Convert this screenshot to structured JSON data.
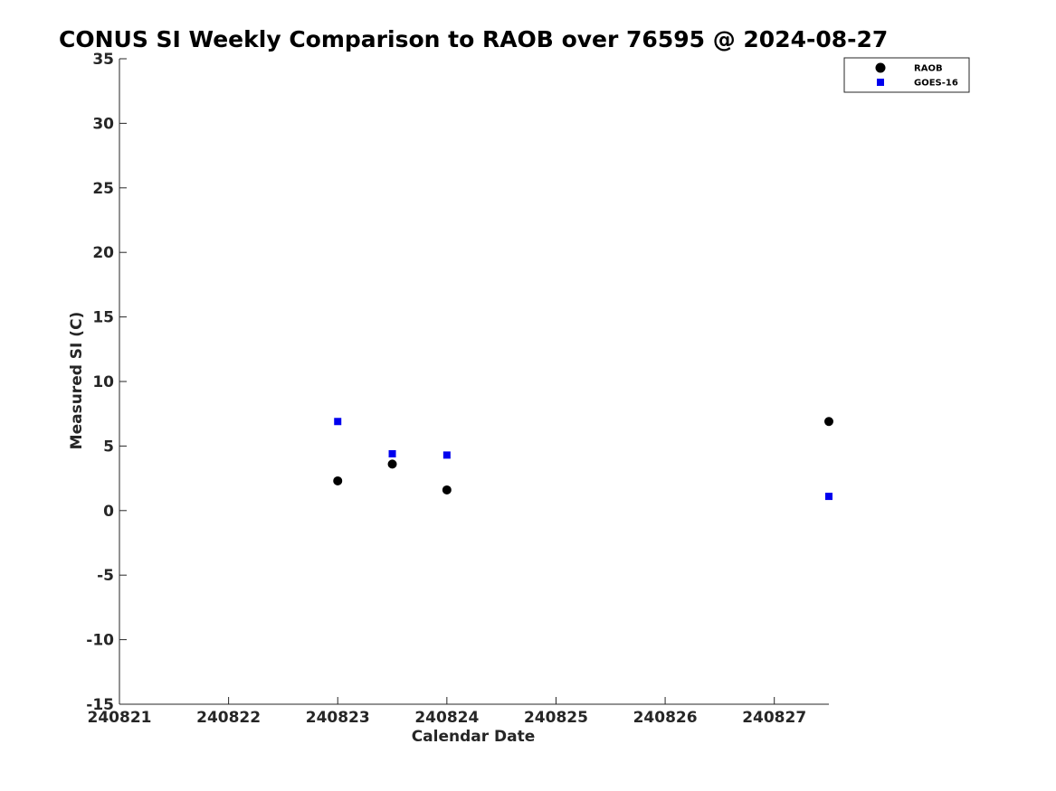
{
  "chart_data": {
    "type": "scatter",
    "title": "CONUS SI Weekly Comparison to RAOB over 76595 @ 2024-08-27",
    "xlabel": "Calendar Date",
    "ylabel": "Measured SI (C)",
    "xlim": [
      240821,
      240827.5
    ],
    "ylim": [
      -15,
      35
    ],
    "xticks": [
      240821,
      240822,
      240823,
      240824,
      240825,
      240826,
      240827
    ],
    "xtick_labels": [
      "240821",
      "240822",
      "240823",
      "240824",
      "240825",
      "240826",
      "240827"
    ],
    "yticks": [
      -15,
      -10,
      -5,
      0,
      5,
      10,
      15,
      20,
      25,
      30,
      35
    ],
    "ytick_labels": [
      "-15",
      "-10",
      "-5",
      "0",
      "5",
      "10",
      "15",
      "20",
      "25",
      "30",
      "35"
    ],
    "grid": false,
    "legend_position": "top-right",
    "series": [
      {
        "name": "RAOB",
        "marker": "circle",
        "color": "#000000",
        "x": [
          240823,
          240823.5,
          240824,
          240827.5
        ],
        "y": [
          2.3,
          3.6,
          1.6,
          6.9
        ]
      },
      {
        "name": "GOES-16",
        "marker": "square",
        "color": "#0000ee",
        "x": [
          240823,
          240823.5,
          240824,
          240827.5
        ],
        "y": [
          6.9,
          4.4,
          4.3,
          1.1
        ]
      }
    ]
  }
}
